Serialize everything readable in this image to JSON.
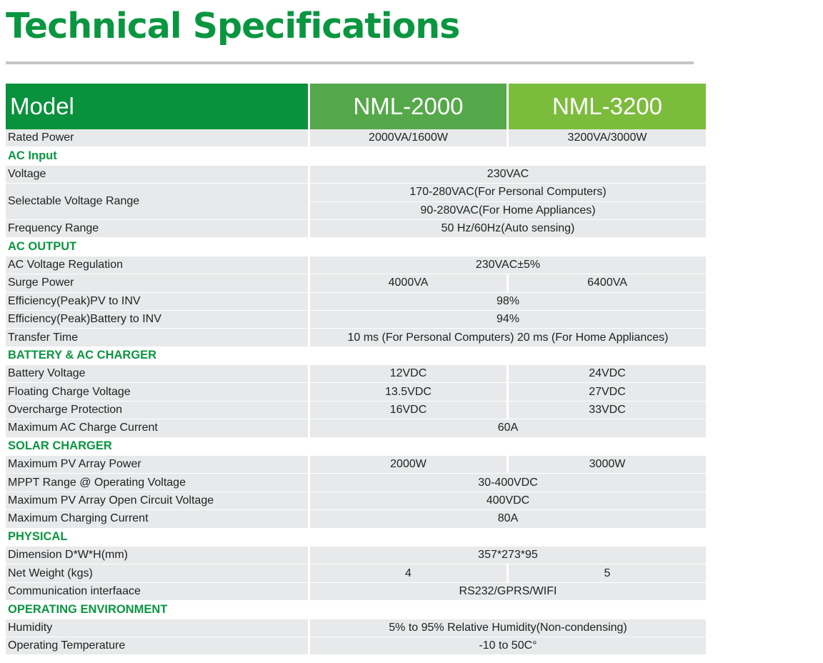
{
  "title": "Technical Specifications",
  "header": {
    "model_label": "Model",
    "models": [
      "NML-2000",
      "NML-3200"
    ]
  },
  "rows": {
    "rated_power": {
      "label": "Rated Power",
      "v1": "2000VA/1600W",
      "v2": "3200VA/3000W"
    },
    "ac_input": "AC Input",
    "voltage": {
      "label": "Voltage",
      "value": "230VAC"
    },
    "selectable_voltage_range": {
      "label": "Selectable Voltage Range",
      "values": [
        "170-280VAC(For Personal Computers)",
        "90-280VAC(For Home Appliances)"
      ]
    },
    "frequency_range": {
      "label": "Frequency Range",
      "value": "50 Hz/60Hz(Auto sensing)"
    },
    "ac_output": "AC OUTPUT",
    "ac_voltage_regulation": {
      "label": "AC Voltage Regulation",
      "value": "230VAC±5%"
    },
    "surge_power": {
      "label": "Surge Power",
      "v1": "4000VA",
      "v2": "6400VA"
    },
    "eff_pv": {
      "label": "Efficiency(Peak)PV to INV",
      "value": "98%"
    },
    "eff_batt": {
      "label": "Efficiency(Peak)Battery to INV",
      "value": "94%"
    },
    "transfer_time": {
      "label": "Transfer Time",
      "value": "10 ms (For Personal Computers) 20 ms (For Home Appliances)"
    },
    "battery_ac_charger": "BATTERY & AC CHARGER",
    "battery_voltage": {
      "label": "Battery Voltage",
      "v1": "12VDC",
      "v2": "24VDC"
    },
    "floating_charge_voltage": {
      "label": "Floating Charge Voltage",
      "v1": "13.5VDC",
      "v2": "27VDC"
    },
    "overcharge_protection": {
      "label": "Overcharge Protection",
      "v1": "16VDC",
      "v2": "33VDC"
    },
    "max_ac_charge_current": {
      "label": "Maximum AC Charge Current",
      "value": "60A"
    },
    "solar_charger": "SOLAR CHARGER",
    "max_pv_array_power": {
      "label": "Maximum PV Array Power",
      "v1": "2000W",
      "v2": "3000W"
    },
    "mppt_range": {
      "label": "MPPT Range @ Operating Voltage",
      "value": "30-400VDC"
    },
    "max_pv_open_circuit": {
      "label": "Maximum PV Array Open Circuit Voltage",
      "value": "400VDC"
    },
    "max_charging_current": {
      "label": "Maximum Charging Current",
      "value": "80A"
    },
    "physical": "PHYSICAL",
    "dimension": {
      "label": "Dimension D*W*H(mm)",
      "value": "357*273*95"
    },
    "net_weight": {
      "label": "Net Weight (kgs)",
      "v1": "4",
      "v2": "5"
    },
    "communication": {
      "label": "Communication interfaace",
      "value": "RS232/GPRS/WIFI"
    },
    "operating_environment": "OPERATING ENVIRONMENT",
    "humidity": {
      "label": "Humidity",
      "value": "5% to 95% Relative Humidity(Non-condensing)"
    },
    "operating_temperature": {
      "label": "Operating Temperature",
      "value": "-10 to 50C°"
    }
  }
}
